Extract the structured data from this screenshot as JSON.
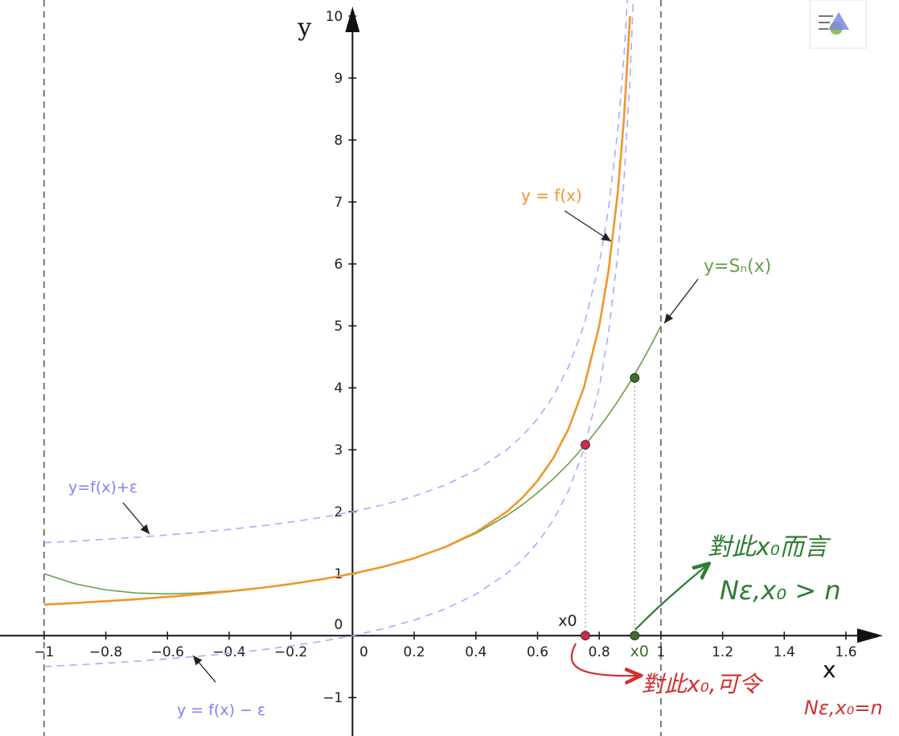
{
  "chart_data": {
    "type": "line",
    "x_label": "x",
    "y_label": "y",
    "xlim": [
      -1.143,
      1.772
    ],
    "ylim": [
      -1.62,
      10.26
    ],
    "xticks": [
      {
        "value": -1,
        "label": "−1"
      },
      {
        "value": -0.8,
        "label": "−0.8"
      },
      {
        "value": -0.6,
        "label": "−0.6"
      },
      {
        "value": -0.4,
        "label": "−0.4"
      },
      {
        "value": -0.2,
        "label": "−0.2"
      },
      0,
      0.2,
      0.4,
      0.6,
      0.8,
      1,
      1.2,
      1.4,
      1.6
    ],
    "yticks": [
      {
        "value": -1,
        "label": "−1"
      },
      0,
      1,
      2,
      3,
      4,
      5,
      6,
      7,
      8,
      9,
      10
    ],
    "vlines": [
      -1,
      1
    ],
    "x": [
      -1,
      -0.9,
      -0.8,
      -0.7,
      -0.6,
      -0.5,
      -0.4,
      -0.3,
      -0.2,
      -0.1,
      0,
      0.1,
      0.2,
      0.3,
      0.4,
      0.5,
      0.55,
      0.6,
      0.65,
      0.7,
      0.75,
      0.8,
      0.83,
      0.86,
      0.88,
      0.9,
      0.92,
      0.94,
      0.96,
      0.98,
      1
    ],
    "series": [
      {
        "name": "y=f(x)+ε",
        "color": "#a9acff",
        "dashed": true,
        "values": [
          1.5,
          1.526,
          1.556,
          1.588,
          1.625,
          1.667,
          1.714,
          1.769,
          1.833,
          1.909,
          2,
          2.111,
          2.25,
          2.429,
          2.667,
          3,
          3.222,
          3.5,
          3.857,
          4.333,
          5,
          6,
          6.882,
          8.143,
          9.333,
          11,
          null,
          null,
          null,
          null,
          null
        ]
      },
      {
        "name": "y = f(x) − ε",
        "color": "#a9acff",
        "dashed": true,
        "values": [
          -0.5,
          -0.474,
          -0.444,
          -0.412,
          -0.375,
          -0.333,
          -0.286,
          -0.231,
          -0.167,
          -0.091,
          0,
          0.111,
          0.25,
          0.429,
          0.667,
          1,
          1.222,
          1.5,
          1.857,
          2.333,
          3,
          4,
          4.882,
          6.143,
          7.333,
          9,
          11.5,
          null,
          null,
          null,
          null
        ]
      },
      {
        "name": "y=Sₙ(x)",
        "color": "#6a9f4a",
        "dashed": false,
        "values": [
          1,
          0.837,
          0.738,
          0.687,
          0.674,
          0.688,
          0.722,
          0.771,
          0.834,
          0.909,
          1,
          1.111,
          1.25,
          1.425,
          1.65,
          1.9375,
          2.11,
          2.306,
          2.526,
          2.773,
          3.051,
          3.362,
          3.565,
          3.783,
          3.936,
          4.095,
          4.262,
          4.435,
          4.616,
          4.804,
          5
        ]
      },
      {
        "name": "y = f(x)",
        "color": "#f0962e",
        "dashed": false,
        "values": [
          0.5,
          0.526,
          0.556,
          0.588,
          0.625,
          0.667,
          0.714,
          0.769,
          0.833,
          0.909,
          1,
          1.111,
          1.25,
          1.429,
          1.667,
          2,
          2.222,
          2.5,
          2.857,
          3.333,
          4,
          5,
          5.882,
          7.143,
          8.333,
          10,
          null,
          null,
          null,
          null,
          null
        ]
      }
    ],
    "points": [
      {
        "x": 0.755,
        "y": 3.08,
        "color": "#d2284f"
      },
      {
        "x": 0.915,
        "y": 4.16,
        "color": "#3e6d2a"
      },
      {
        "x": 0.755,
        "y": 0,
        "color": "#d2284f",
        "label": "x0",
        "label_color": "#222222"
      },
      {
        "x": 0.915,
        "y": 0,
        "color": "#3e6d2a",
        "label": "x0",
        "label_color": "#3e6d2a"
      }
    ],
    "annotations": [
      {
        "text": "對此x₀而言",
        "color": "#2e7d32"
      },
      {
        "text": "Nε,x₀ > n",
        "color": "#2e7d32"
      },
      {
        "text": "對此x₀,可令",
        "color": "#d32f2f"
      },
      {
        "text": "Nε,x₀=n",
        "color": "#d32f2f"
      }
    ]
  }
}
